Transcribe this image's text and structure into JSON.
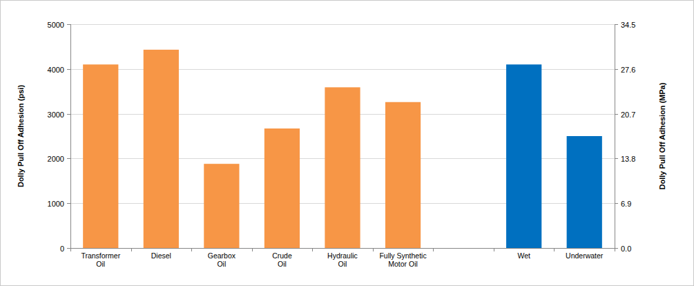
{
  "chart_data": {
    "type": "bar",
    "y_label": "Dolly Pull Off Adhesion (psi)",
    "y2_label": "Dolly Pull Off Adhesion (MPa)",
    "categories": [
      "Transformer\nOil",
      "Diesel",
      "Gearbox\nOil",
      "Crude\nOil",
      "Hydraulic\nOil",
      "Fully Synthetic\nMotor Oil",
      null,
      "Wet",
      "Underwater"
    ],
    "values": [
      4100,
      4430,
      1880,
      2670,
      3590,
      3260,
      null,
      4100,
      2500
    ],
    "colors": [
      "#f79646",
      "#f79646",
      "#f79646",
      "#f79646",
      "#f79646",
      "#f79646",
      null,
      "#0070c0",
      "#0070c0"
    ],
    "ylim": [
      0,
      5000
    ],
    "yticks": [
      0,
      1000,
      2000,
      3000,
      4000,
      5000
    ],
    "y2lim": [
      0,
      34.5
    ],
    "y2ticks": [
      {
        "value": 0,
        "label": "0.0"
      },
      6.9,
      13.8,
      20.7,
      27.6,
      34.5
    ],
    "grid": true
  }
}
